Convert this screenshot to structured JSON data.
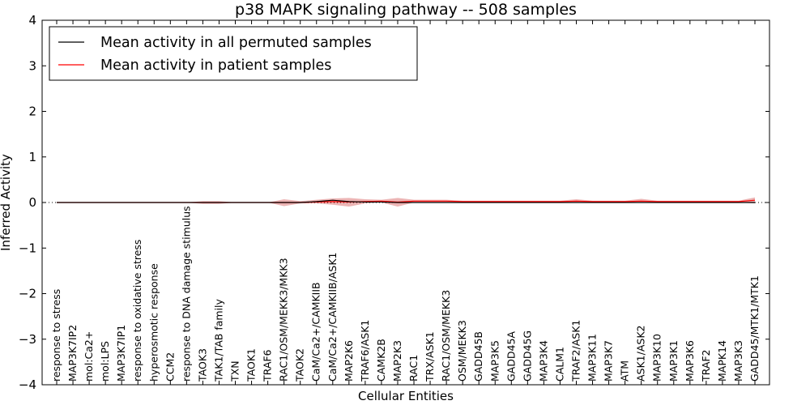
{
  "chart_data": {
    "type": "line",
    "title": "p38 MAPK signaling pathway -- 508 samples",
    "xlabel": "Cellular Entities",
    "ylabel": "Inferred Activity",
    "ylim": [
      -4,
      4
    ],
    "yticks": [
      -4,
      -3,
      -2,
      -1,
      0,
      1,
      2,
      3,
      4
    ],
    "ytick_labels": [
      "−4",
      "−3",
      "−2",
      "−1",
      "0",
      "1",
      "2",
      "3",
      "4"
    ],
    "legend_position": "top-left",
    "zero_line": "dotted",
    "categories": [
      "response to stress",
      "MAP3K7IP2",
      "mol:Ca2+",
      "mol:LPS",
      "MAP3K7IP1",
      "response to oxidative stress",
      "hyperosmotic response",
      "CCM2",
      "response to DNA damage stimulus",
      "TAOK3",
      "TAK1/TAB family",
      "TXN",
      "TAOK1",
      "TRAF6",
      "RAC1/OSM/MEKK3/MKK3",
      "TAOK2",
      "CaM/Ca2+/CAMKIIB",
      "CaM/Ca2+/CAMKIIB/ASK1",
      "MAP2K6",
      "TRAF6/ASK1",
      "CAMK2B",
      "MAP2K3",
      "RAC1",
      "TRX/ASK1",
      "RAC1/OSM/MEKK3",
      "OSM/MEKK3",
      "GADD45B",
      "MAP3K5",
      "GADD45A",
      "GADD45G",
      "MAP3K4",
      "CALM1",
      "TRAF2/ASK1",
      "MAP3K11",
      "MAP3K7",
      "ATM",
      "ASK1/ASK2",
      "MAP3K10",
      "MAP3K1",
      "MAP3K6",
      "TRAF2",
      "MAPK14",
      "MAP3K3",
      "GADD45/MTK1/MTK1"
    ],
    "series": [
      {
        "name": "Mean activity in all permuted samples",
        "color": "#000000",
        "values": [
          0,
          0,
          0,
          0,
          0,
          0,
          0,
          0,
          0,
          0,
          0,
          0,
          0,
          0,
          0,
          0,
          0.02,
          0.05,
          0.02,
          0.01,
          0.01,
          0.0,
          0.0,
          0.0,
          0.0,
          0.0,
          0.0,
          0.0,
          0.0,
          0.0,
          0.0,
          0.0,
          0.0,
          0.0,
          0.0,
          0.0,
          0.0,
          0.0,
          0.0,
          0.0,
          0.0,
          0.0,
          0.0,
          0.0
        ]
      },
      {
        "name": "Mean activity in patient samples",
        "color": "#ff0000",
        "band_color": "#dc7777",
        "values": [
          0,
          0,
          0,
          0,
          0,
          0,
          0,
          0,
          0,
          0,
          0,
          0,
          0,
          0,
          0,
          0,
          0.01,
          0.02,
          0.01,
          0.02,
          0.03,
          0.01,
          0.03,
          0.03,
          0.03,
          0.02,
          0.02,
          0.02,
          0.02,
          0.02,
          0.02,
          0.02,
          0.03,
          0.02,
          0.02,
          0.02,
          0.03,
          0.02,
          0.02,
          0.02,
          0.02,
          0.02,
          0.02,
          0.05
        ],
        "band_upper": [
          0,
          0,
          0,
          0,
          0,
          0,
          0,
          0,
          0,
          0.03,
          0.03,
          0,
          0,
          0,
          0.07,
          0.03,
          0.06,
          0.09,
          0.1,
          0.07,
          0.06,
          0.1,
          0.06,
          0.06,
          0.06,
          0.04,
          0.04,
          0.04,
          0.04,
          0.04,
          0.04,
          0.04,
          0.07,
          0.04,
          0.04,
          0.04,
          0.08,
          0.04,
          0.04,
          0.04,
          0.04,
          0.04,
          0.04,
          0.11
        ],
        "band_lower": [
          0,
          0,
          0,
          0,
          0,
          0,
          0,
          0,
          0,
          -0.03,
          -0.03,
          0,
          0,
          0,
          -0.08,
          -0.02,
          -0.02,
          -0.05,
          -0.09,
          -0.02,
          0.0,
          -0.09,
          0.0,
          0.0,
          0.0,
          0.0,
          0.0,
          0.0,
          0.0,
          0.0,
          0.0,
          0.0,
          0.0,
          0.0,
          0.0,
          0.0,
          0.0,
          0.0,
          0.0,
          0.0,
          0.0,
          0.0,
          0.0,
          -0.02
        ]
      }
    ]
  }
}
